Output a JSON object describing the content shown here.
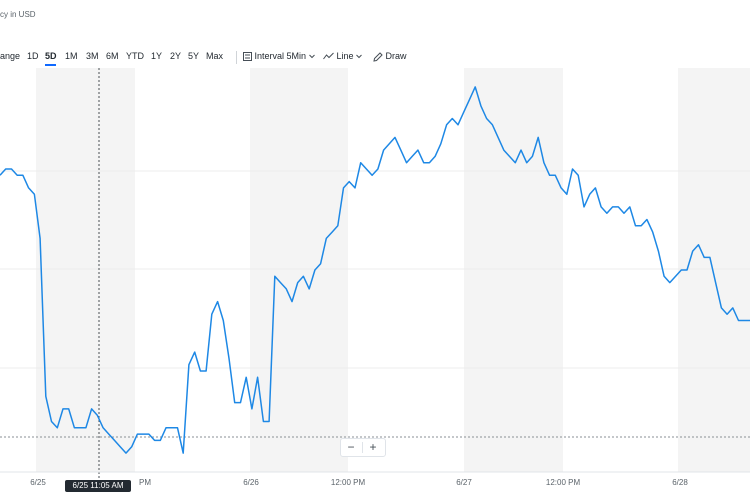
{
  "header": {
    "currency_note": "cy in USD"
  },
  "toolbar": {
    "range_label": "ange",
    "ranges": [
      "1D",
      "5D",
      "1M",
      "3M",
      "6M",
      "YTD",
      "1Y",
      "2Y",
      "5Y",
      "Max"
    ],
    "active_range": "5D",
    "interval_label": "Interval",
    "interval_value": "5Min",
    "chart_type": "Line",
    "draw_label": "Draw"
  },
  "zoom": {
    "minus": "−",
    "plus": "+"
  },
  "crosshair": {
    "label": "6/25 11:05 AM"
  },
  "colors": {
    "line": "#1e88e5",
    "shade": "#f4f4f4",
    "accent": "#0f69ff"
  },
  "chart_data": {
    "type": "line",
    "x_labels": [
      "6/25",
      "PM",
      "6/26",
      "12:00 PM",
      "6/27",
      "12:00 PM",
      "6/28"
    ],
    "values": [
      95,
      96,
      96,
      95,
      95,
      93,
      92,
      85,
      60,
      56,
      55,
      58,
      58,
      55,
      55,
      55,
      58,
      57,
      55,
      54,
      53,
      52,
      51,
      52,
      54,
      54,
      54,
      53,
      53,
      55,
      55,
      55,
      51,
      65,
      67,
      64,
      64,
      73,
      75,
      72,
      66,
      59,
      59,
      63,
      58,
      63,
      56,
      56,
      79,
      78,
      77,
      75,
      78,
      79,
      77,
      80,
      81,
      85,
      86,
      87,
      93,
      94,
      93,
      97,
      96,
      95,
      96,
      99,
      100,
      101,
      99,
      97,
      98,
      99,
      97,
      97,
      98,
      100,
      103,
      104,
      103,
      105,
      107,
      109,
      106,
      104,
      103,
      101,
      99,
      98,
      97,
      99,
      97,
      98,
      101,
      97,
      95,
      95,
      93,
      92,
      96,
      95,
      90,
      92,
      93,
      90,
      89,
      90,
      90,
      89,
      90,
      87,
      87,
      88,
      86,
      83,
      79,
      78,
      79,
      80,
      80,
      83,
      84,
      82,
      82,
      78,
      74,
      73,
      74,
      72,
      72,
      72
    ],
    "ylim": [
      48,
      112
    ],
    "grid": true
  }
}
